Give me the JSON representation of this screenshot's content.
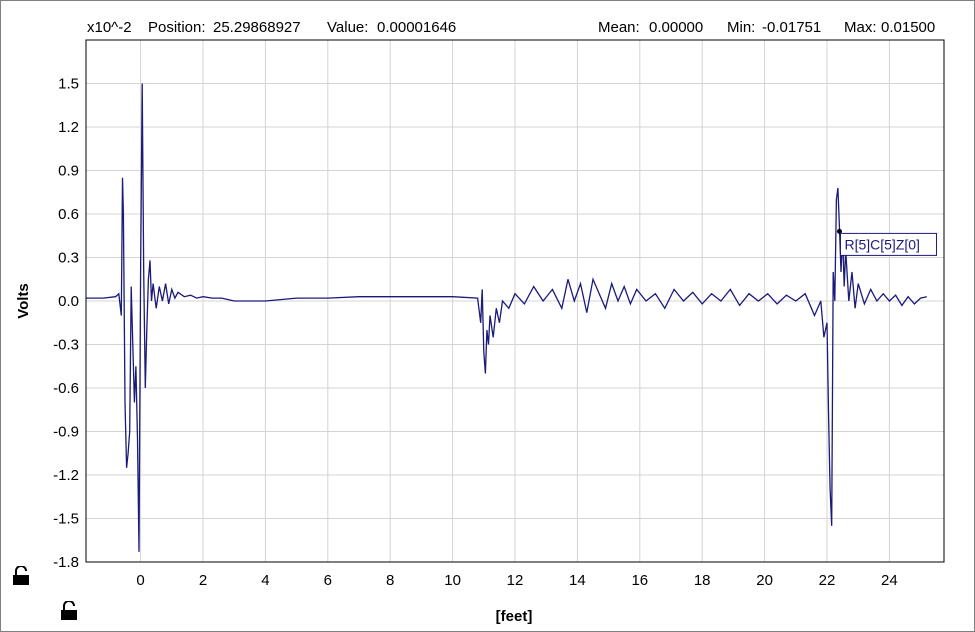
{
  "header": {
    "exponent": "x10^-2",
    "position_label": "Position:",
    "position_value": "25.29868927",
    "value_label": "Value:",
    "value_value": "0.00001646",
    "mean_label": "Mean:",
    "mean_value": "0.00000",
    "min_label": "Min:",
    "min_value": "-0.01751",
    "max_label": "Max:",
    "max_value": "0.01500"
  },
  "marker": {
    "label": "R[5]C[5]Z[0]",
    "x": 22.4,
    "y": 0.48
  },
  "icons": [
    "lock-icon",
    "lock-icon"
  ],
  "colors": {
    "trace": "#1a1a7a",
    "grid": "#d4d4d4",
    "axis": "#000000"
  },
  "chart_data": {
    "type": "line",
    "title": "",
    "xlabel": "[feet]",
    "ylabel": "Volts",
    "xlim": [
      -1.75,
      25.75
    ],
    "ylim": [
      -1.8,
      1.8
    ],
    "xticks": [
      0,
      2,
      4,
      6,
      8,
      10,
      12,
      14,
      16,
      18,
      20,
      22,
      24
    ],
    "yticks": [
      -1.8,
      -1.5,
      -1.2,
      -0.9,
      -0.6,
      -0.3,
      0.0,
      0.3,
      0.6,
      0.9,
      1.2,
      1.5
    ],
    "ytick_labels": [
      "-1.8",
      "-1.5",
      "-1.2",
      "-0.9",
      "-0.6",
      "-0.3",
      "0.0",
      "0.3",
      "0.6",
      "0.9",
      "1.2",
      "1.5"
    ],
    "grid": true,
    "series": [
      {
        "x": [
          -1.75,
          -1.2,
          -0.8,
          -0.7,
          -0.62,
          -0.58,
          -0.55,
          -0.5,
          -0.45,
          -0.4,
          -0.35,
          -0.3,
          -0.25,
          -0.2,
          -0.15,
          -0.1,
          -0.05,
          0.0,
          0.05,
          0.1,
          0.15,
          0.2,
          0.25,
          0.3,
          0.35,
          0.4,
          0.5,
          0.6,
          0.7,
          0.8,
          0.9,
          1.0,
          1.1,
          1.2,
          1.4,
          1.6,
          1.8,
          2.0,
          2.3,
          2.6,
          3.0,
          4.0,
          5.0,
          6.0,
          7.0,
          8.0,
          9.0,
          10.0,
          10.8,
          10.9,
          10.95,
          11.0,
          11.05,
          11.1,
          11.15,
          11.2,
          11.3,
          11.4,
          11.5,
          11.6,
          11.8,
          12.0,
          12.3,
          12.6,
          12.9,
          13.2,
          13.5,
          13.7,
          13.9,
          14.1,
          14.3,
          14.5,
          14.7,
          14.9,
          15.1,
          15.3,
          15.5,
          15.7,
          15.9,
          16.2,
          16.5,
          16.8,
          17.1,
          17.4,
          17.7,
          18.0,
          18.3,
          18.6,
          18.9,
          19.2,
          19.5,
          19.8,
          20.1,
          20.4,
          20.7,
          21.0,
          21.3,
          21.6,
          21.8,
          21.9,
          22.0,
          22.05,
          22.1,
          22.15,
          22.2,
          22.25,
          22.3,
          22.35,
          22.4,
          22.45,
          22.5,
          22.55,
          22.6,
          22.7,
          22.8,
          22.9,
          23.0,
          23.2,
          23.4,
          23.6,
          23.8,
          24.0,
          24.2,
          24.4,
          24.6,
          24.8,
          25.0,
          25.2
        ],
        "y": [
          0.02,
          0.02,
          0.03,
          0.05,
          -0.1,
          0.85,
          0.6,
          -0.7,
          -1.15,
          -1.05,
          -0.9,
          0.1,
          -0.3,
          -0.7,
          -0.45,
          -0.95,
          -1.73,
          0.2,
          1.5,
          0.2,
          -0.6,
          -0.2,
          0.15,
          0.28,
          0.0,
          0.12,
          -0.05,
          0.1,
          0.0,
          0.12,
          -0.02,
          0.08,
          0.02,
          0.06,
          0.03,
          0.04,
          0.02,
          0.03,
          0.02,
          0.02,
          0.0,
          0.0,
          0.02,
          0.02,
          0.03,
          0.03,
          0.03,
          0.03,
          0.02,
          -0.15,
          0.08,
          -0.35,
          -0.5,
          -0.2,
          -0.3,
          -0.1,
          -0.25,
          -0.05,
          -0.15,
          0.0,
          -0.05,
          0.05,
          -0.02,
          0.1,
          0.0,
          0.08,
          -0.05,
          0.15,
          0.0,
          0.12,
          -0.08,
          0.15,
          0.05,
          -0.05,
          0.12,
          0.0,
          0.1,
          -0.02,
          0.08,
          0.0,
          0.05,
          -0.05,
          0.08,
          0.0,
          0.06,
          -0.02,
          0.05,
          0.0,
          0.08,
          -0.03,
          0.05,
          0.0,
          0.05,
          -0.02,
          0.04,
          0.0,
          0.05,
          -0.1,
          0.0,
          -0.25,
          -0.15,
          -0.8,
          -1.3,
          -1.55,
          0.2,
          0.0,
          0.7,
          0.78,
          0.5,
          0.2,
          0.45,
          0.1,
          0.35,
          0.0,
          0.2,
          -0.05,
          0.12,
          -0.02,
          0.08,
          0.0,
          0.05,
          0.0,
          0.04,
          -0.03,
          0.03,
          -0.02,
          0.02,
          0.03
        ]
      }
    ]
  }
}
